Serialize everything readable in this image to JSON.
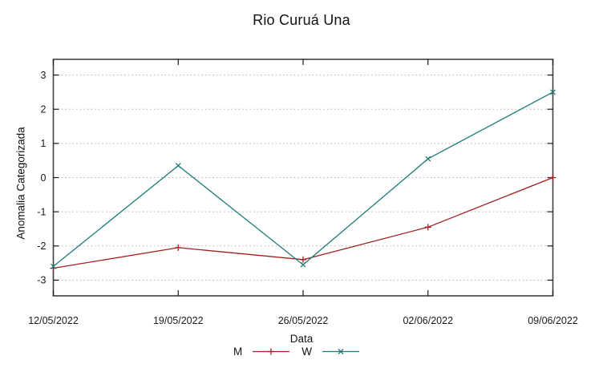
{
  "chart_data": {
    "type": "line",
    "title": "Rio Curuá Una",
    "xlabel": "Data",
    "ylabel": "Anomalia Categorizada",
    "x": [
      "12/05/2022",
      "19/05/2022",
      "26/05/2022",
      "02/06/2022",
      "09/06/2022"
    ],
    "series": [
      {
        "name": "M",
        "color": "#a32020",
        "marker": "plus",
        "values": [
          -2.65,
          -2.05,
          -2.4,
          -1.45,
          0.0
        ]
      },
      {
        "name": "W",
        "color": "#1e7b78",
        "marker": "cross",
        "values": [
          -2.6,
          0.35,
          -2.55,
          0.55,
          2.5
        ]
      }
    ],
    "yticks": [
      -3,
      -2,
      -1,
      0,
      1,
      2,
      3
    ],
    "ylim": [
      -3.46,
      3.46
    ],
    "grid": true,
    "grid_style": "dotted",
    "legend_position": "bottom-center",
    "colors": {
      "grid": "#b3b3b3",
      "border": "#404040",
      "tick": "#1a1a1a",
      "text": "#1a1a1a",
      "background": "#ffffff"
    }
  }
}
